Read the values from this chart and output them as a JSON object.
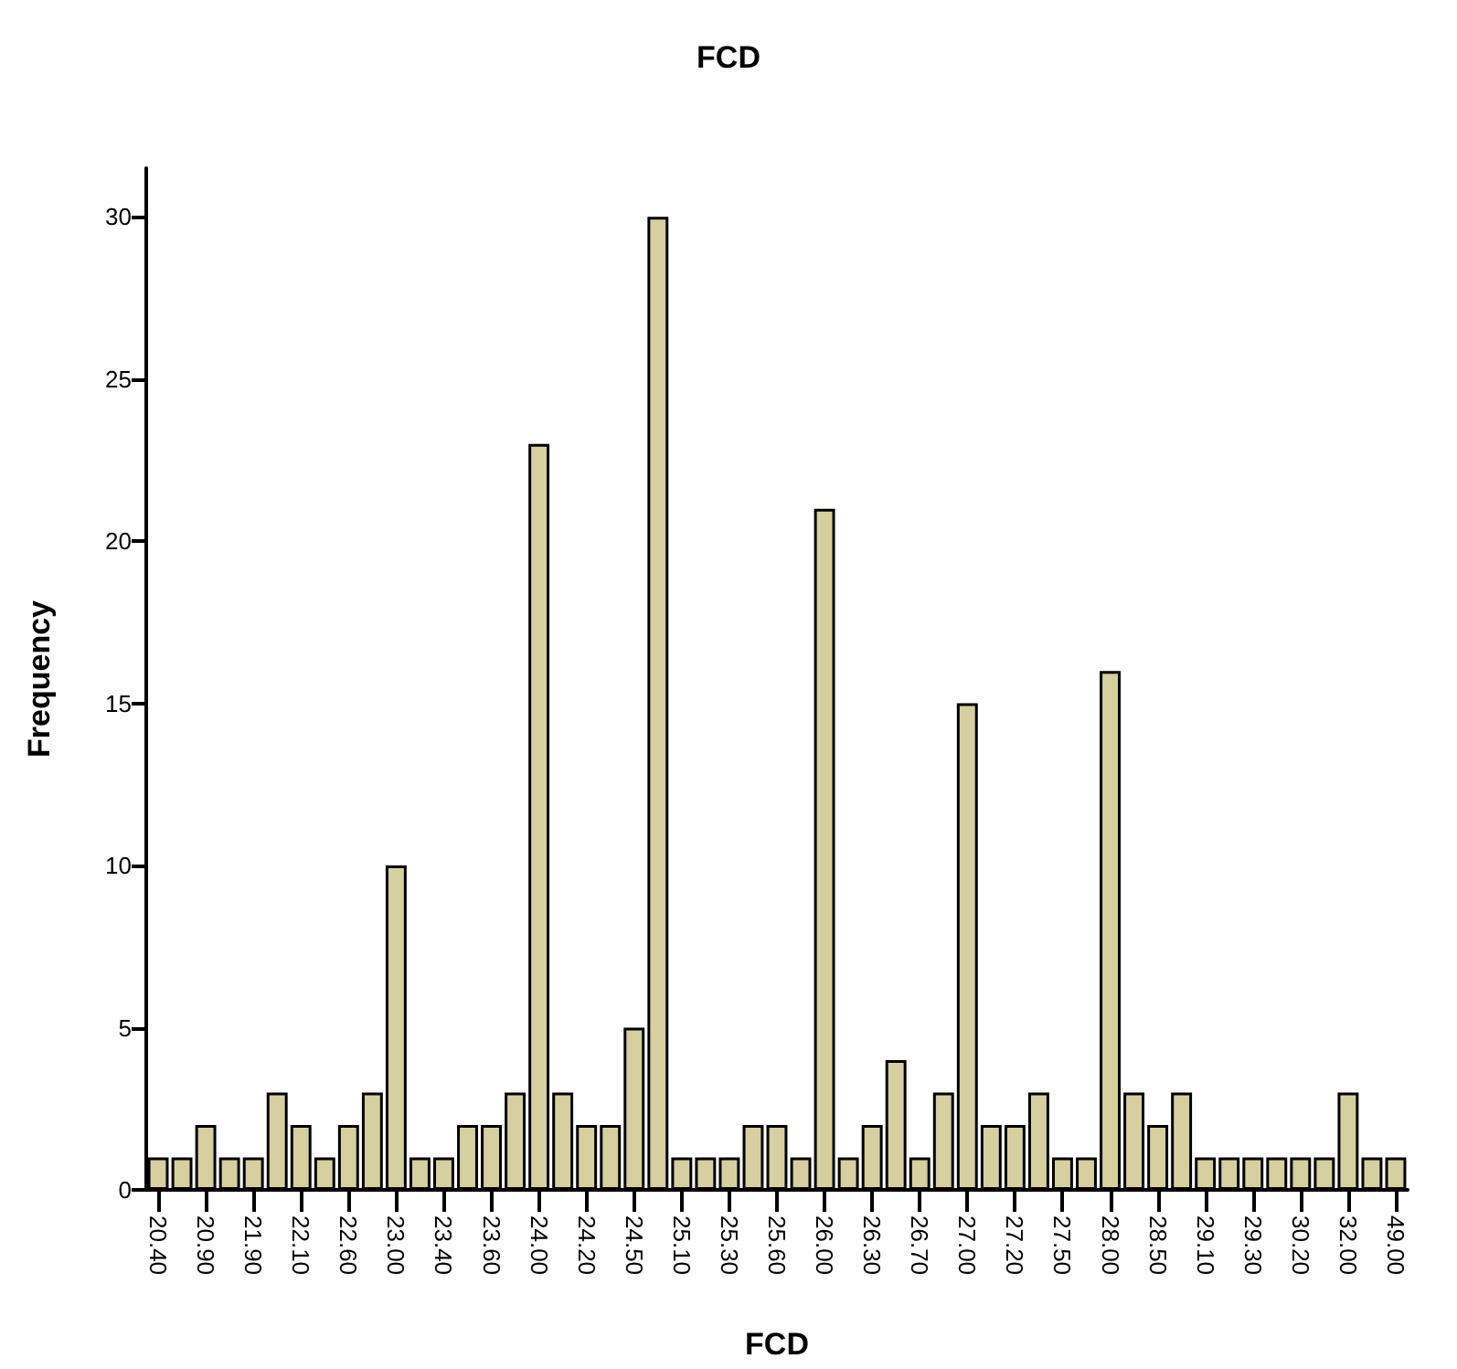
{
  "chart_data": {
    "type": "bar",
    "title": "FCD",
    "xlabel": "FCD",
    "ylabel": "Frequency",
    "categories": [
      "20.40",
      null,
      "20.90",
      null,
      "21.90",
      null,
      "22.10",
      null,
      "22.60",
      null,
      "23.00",
      null,
      "23.40",
      null,
      "23.60",
      null,
      "24.00",
      null,
      "24.20",
      null,
      "24.50",
      null,
      "25.10",
      null,
      "25.30",
      null,
      "25.60",
      null,
      "26.00",
      null,
      "26.30",
      null,
      "26.70",
      null,
      "27.00",
      null,
      "27.20",
      null,
      "27.50",
      null,
      "28.00",
      null,
      "28.50",
      null,
      "29.10",
      null,
      "29.30",
      null,
      "30.20",
      null,
      "32.00",
      null,
      "49.00"
    ],
    "values": [
      1,
      1,
      2,
      1,
      1,
      3,
      2,
      1,
      2,
      3,
      10,
      1,
      1,
      2,
      2,
      3,
      23,
      3,
      2,
      2,
      5,
      30,
      1,
      1,
      1,
      2,
      2,
      1,
      21,
      1,
      2,
      4,
      1,
      3,
      15,
      2,
      2,
      3,
      1,
      1,
      16,
      3,
      2,
      3,
      1,
      1,
      1,
      1,
      1,
      1,
      3,
      1,
      1
    ],
    "color": "#d6cf9f",
    "ylim": [
      0,
      31.5
    ],
    "yticks": [
      0,
      5,
      10,
      15,
      20,
      25,
      30
    ],
    "grid": false
  }
}
